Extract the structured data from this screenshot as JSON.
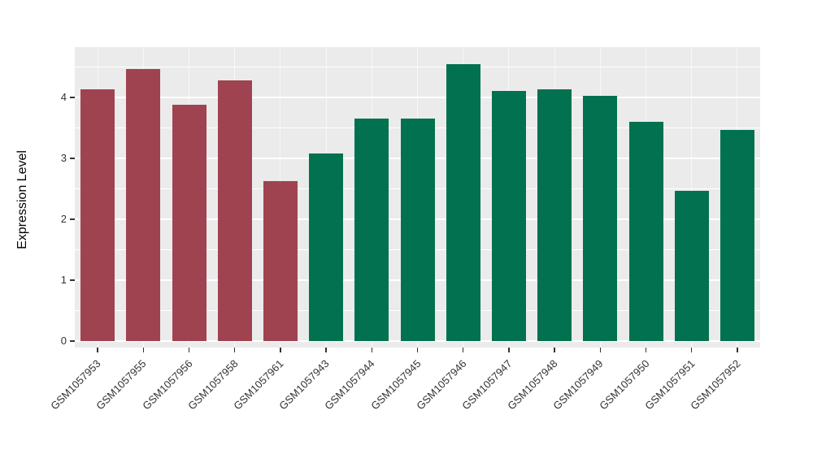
{
  "chart_data": {
    "type": "bar",
    "title": "",
    "ylabel": "Expression Level",
    "xlabel": "",
    "categories": [
      "GSM1057953",
      "GSM1057955",
      "GSM1057956",
      "GSM1057958",
      "GSM1057961",
      "GSM1057943",
      "GSM1057944",
      "GSM1057945",
      "GSM1057946",
      "GSM1057947",
      "GSM1057948",
      "GSM1057949",
      "GSM1057950",
      "GSM1057951",
      "GSM1057952"
    ],
    "values": [
      4.13,
      4.47,
      3.88,
      4.28,
      2.63,
      3.08,
      3.65,
      3.65,
      4.55,
      4.11,
      4.13,
      4.03,
      3.6,
      2.47,
      3.46
    ],
    "bar_colors": [
      "#A04350",
      "#A04350",
      "#A04350",
      "#A04350",
      "#A04350",
      "#02714F",
      "#02714F",
      "#02714F",
      "#02714F",
      "#02714F",
      "#02714F",
      "#02714F",
      "#02714F",
      "#02714F",
      "#02714F"
    ],
    "group_colors": {
      "group1": "#A04350",
      "group2": "#02714F"
    },
    "yticks": [
      0,
      1,
      2,
      3,
      4
    ],
    "ylim": [
      0,
      4.8
    ],
    "grid": "on",
    "legend": "none",
    "colors": {
      "panel_bg": "#EBEBEB",
      "grid_major": "#FFFFFF",
      "grid_minor": "#FFFFFF",
      "tick_text": "#333333",
      "axis_title": "#000000",
      "outer_bg": "#FFFFFF"
    }
  }
}
